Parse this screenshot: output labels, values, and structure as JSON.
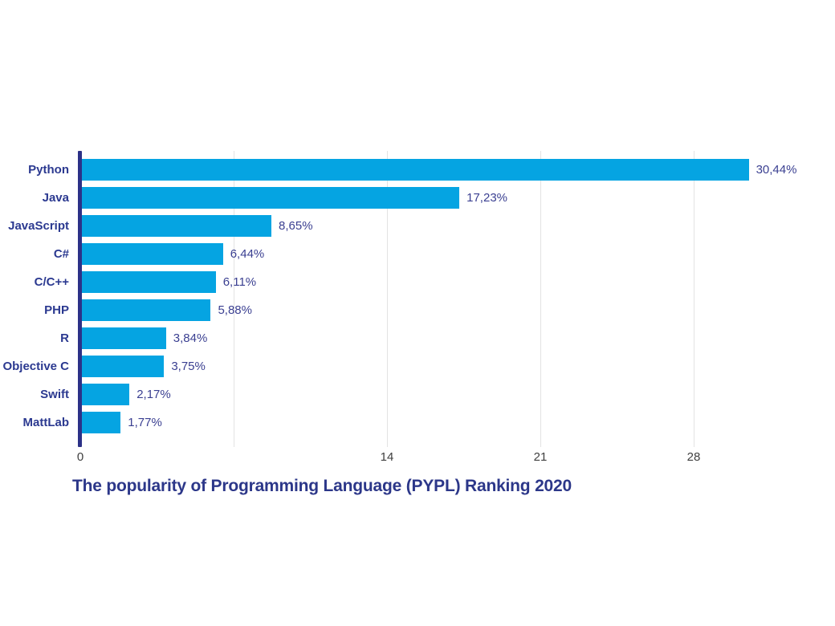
{
  "chart_data": {
    "type": "bar",
    "orientation": "horizontal",
    "title": "The popularity of Programming Language (PYPL) Ranking 2020",
    "categories": [
      "Python",
      "Java",
      "JavaScript",
      "C#",
      "C/C++",
      "PHP",
      "R",
      "Objective C",
      "Swift",
      "MattLab"
    ],
    "values": [
      30.44,
      17.23,
      8.65,
      6.44,
      6.11,
      5.88,
      3.84,
      3.75,
      2.17,
      1.77
    ],
    "value_labels": [
      "30,44%",
      "17,23%",
      "8,65%",
      "6,44%",
      "6,11%",
      "5,88%",
      "3,84%",
      "3,75%",
      "2,17%",
      "1,77%"
    ],
    "x_ticks": [
      {
        "value": 0,
        "label": "0"
      },
      {
        "value": 7,
        "label": ""
      },
      {
        "value": 14,
        "label": "14"
      },
      {
        "value": 21,
        "label": "21"
      },
      {
        "value": 28,
        "label": "28"
      }
    ],
    "xlim": [
      0,
      32.2
    ],
    "xlabel": "",
    "ylabel": "",
    "grid": true,
    "legend_position": "none",
    "colors": {
      "bar": "#05A4E2",
      "axis": "#2C3187",
      "category_label": "#2B3990",
      "value_label": "#3A3F91",
      "tick_label": "#3F3F3F",
      "gridline": "#E3E3E3",
      "title": "#2C3789"
    }
  }
}
